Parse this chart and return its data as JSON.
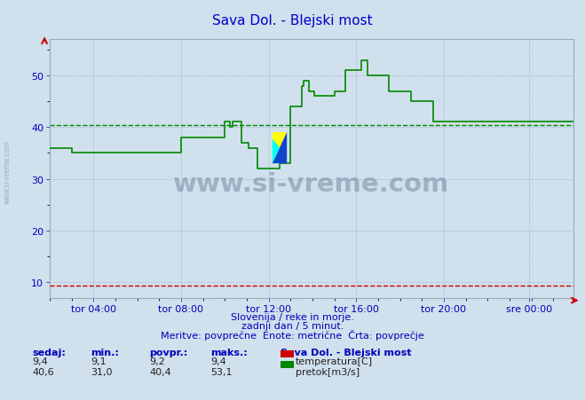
{
  "title": "Sava Dol. - Blejski most",
  "title_color": "#0000cc",
  "bg_color": "#d0e0ec",
  "plot_bg_color": "#d0e0ec",
  "xlabel": "",
  "ylabel": "",
  "ylim": [
    7,
    57
  ],
  "yticks": [
    10,
    20,
    30,
    40,
    50
  ],
  "xlim": [
    0,
    287
  ],
  "xtick_positions": [
    24,
    72,
    120,
    168,
    216,
    263
  ],
  "xtick_labels": [
    "tor 04:00",
    "tor 08:00",
    "tor 12:00",
    "tor 16:00",
    "tor 20:00",
    "sre 00:00"
  ],
  "avg_flow": 40.4,
  "temp_color": "#cc0000",
  "flow_color": "#008800",
  "avg_line_color_flow": "#008800",
  "grid_color": "#b0c4d8",
  "grid_minor_color": "#c8d8e8",
  "watermark": "www.si-vreme.com",
  "footer_line1": "Slovenija / reke in morje.",
  "footer_line2": "zadnji dan / 5 minut.",
  "footer_line3": "Meritve: povprečne  Enote: metrične  Črta: povprečje",
  "legend_title": "Sava Dol. - Blejski most",
  "legend_entries": [
    "temperatura[C]",
    "pretok[m3/s]"
  ],
  "legend_colors": [
    "#cc0000",
    "#008800"
  ],
  "stats_headers": [
    "sedaj:",
    "min.:",
    "povpr.:",
    "maks.:"
  ],
  "stats_temp": [
    9.4,
    9.1,
    9.2,
    9.4
  ],
  "stats_flow": [
    40.6,
    31.0,
    40.4,
    53.1
  ],
  "flow_data": [
    36,
    36,
    36,
    36,
    36,
    36,
    36,
    36,
    36,
    36,
    36,
    36,
    35,
    35,
    35,
    35,
    35,
    35,
    35,
    35,
    35,
    35,
    35,
    35,
    35,
    35,
    35,
    35,
    35,
    35,
    35,
    35,
    35,
    35,
    35,
    35,
    35,
    35,
    35,
    35,
    35,
    35,
    35,
    35,
    35,
    35,
    35,
    35,
    35,
    35,
    35,
    35,
    35,
    35,
    35,
    35,
    35,
    35,
    35,
    35,
    35,
    35,
    35,
    35,
    35,
    35,
    35,
    35,
    35,
    35,
    35,
    35,
    38,
    38,
    38,
    38,
    38,
    38,
    38,
    38,
    38,
    38,
    38,
    38,
    38,
    38,
    38,
    38,
    38,
    38,
    38,
    38,
    38,
    38,
    38,
    38,
    41,
    41,
    41,
    40,
    41,
    41,
    41,
    41,
    41,
    37,
    37,
    37,
    37,
    36,
    36,
    36,
    36,
    36,
    32,
    32,
    32,
    32,
    32,
    32,
    32,
    32,
    32,
    32,
    32,
    32,
    33,
    33,
    33,
    33,
    33,
    33,
    44,
    44,
    44,
    44,
    44,
    44,
    48,
    49,
    49,
    49,
    47,
    47,
    47,
    46,
    46,
    46,
    46,
    46,
    46,
    46,
    46,
    46,
    46,
    46,
    47,
    47,
    47,
    47,
    47,
    47,
    51,
    51,
    51,
    51,
    51,
    51,
    51,
    51,
    51,
    53,
    53,
    53,
    50,
    50,
    50,
    50,
    50,
    50,
    50,
    50,
    50,
    50,
    50,
    50,
    47,
    47,
    47,
    47,
    47,
    47,
    47,
    47,
    47,
    47,
    47,
    47,
    45,
    45,
    45,
    45,
    45,
    45,
    45,
    45,
    45,
    45,
    45,
    45,
    41,
    41,
    41,
    41,
    41,
    41,
    41,
    41,
    41,
    41,
    41,
    41,
    41,
    41,
    41,
    41,
    41,
    41,
    41,
    41,
    41,
    41,
    41,
    41,
    41,
    41,
    41,
    41,
    41,
    41,
    41,
    41,
    41,
    41,
    41,
    41,
    41,
    41,
    41,
    41,
    41,
    41,
    41,
    41,
    41,
    41,
    41,
    41,
    41,
    41,
    41,
    41,
    41,
    41,
    41,
    41,
    41,
    41,
    41,
    41,
    41,
    41,
    41,
    41,
    41,
    41,
    41,
    41,
    41,
    41,
    41,
    41,
    41,
    41,
    41,
    41,
    41,
    41
  ],
  "temp_data_y": 9.4,
  "sidebar_text": "www.si-vreme.com",
  "sidebar_color": "#99aacc"
}
